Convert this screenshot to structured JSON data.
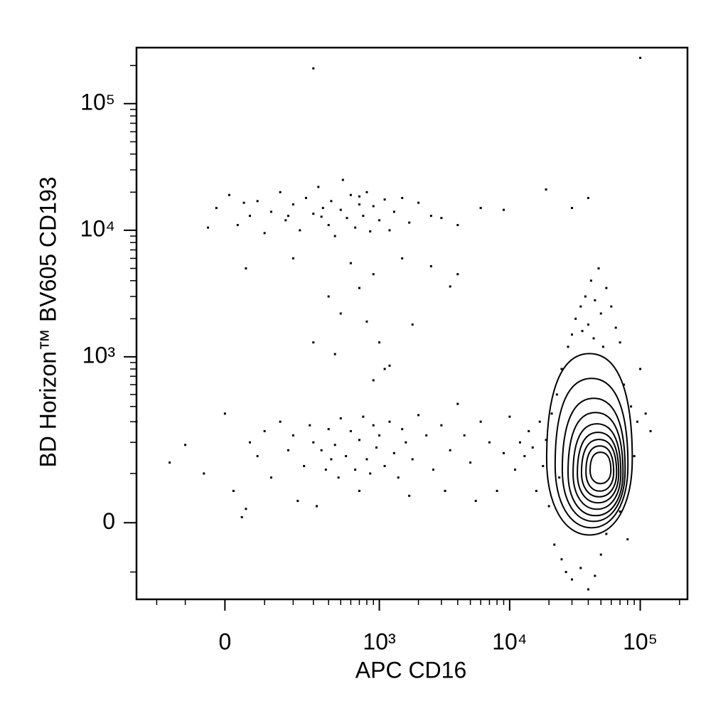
{
  "chart_data": {
    "type": "scatter",
    "xlabel": "APC CD16",
    "ylabel": "BD Horizon™ BV605 CD193",
    "xscale": "biexponential",
    "yscale": "biexponential",
    "xlim": [
      -300,
      230000
    ],
    "ylim": [
      -185,
      277000
    ],
    "xticks": [
      0,
      {
        "value": 1000,
        "label": "10³"
      },
      {
        "value": 10000,
        "label": "10⁴"
      },
      {
        "value": 100000,
        "label": "10⁵"
      }
    ],
    "yticks": [
      0,
      {
        "value": 1000,
        "label": "10³"
      },
      {
        "value": 10000,
        "label": "10⁴"
      },
      {
        "value": 100000,
        "label": "10⁵"
      }
    ],
    "xminorticks": [
      -200,
      -100,
      100,
      200,
      300,
      400,
      500,
      600,
      700,
      800,
      900,
      2000,
      3000,
      4000,
      5000,
      6000,
      7000,
      8000,
      9000,
      20000,
      30000,
      40000,
      50000,
      60000,
      70000,
      80000,
      90000,
      200000
    ],
    "yminorticks": [
      -100,
      100,
      200,
      300,
      400,
      500,
      600,
      700,
      800,
      900,
      2000,
      3000,
      4000,
      5000,
      6000,
      7000,
      8000,
      9000,
      20000,
      30000,
      40000,
      50000,
      60000,
      70000,
      80000,
      90000,
      200000
    ],
    "color": "#000000",
    "x": [
      -20,
      10,
      30,
      60,
      80,
      100,
      120,
      150,
      170,
      200,
      230,
      260,
      300,
      330,
      360,
      400,
      420,
      450,
      500,
      520,
      560,
      600,
      650,
      700,
      750,
      800,
      850,
      900,
      1000,
      1100,
      1200,
      1300,
      1500,
      1700,
      2000,
      2500,
      3000,
      4000,
      6000,
      9000,
      19000,
      40000,
      30000,
      -40,
      45,
      180,
      350,
      700,
      50,
      200,
      400,
      500,
      600,
      700,
      900,
      1500,
      1800,
      2500,
      3500,
      4000,
      800,
      1000,
      1100,
      450,
      300,
      900,
      1200,
      -300,
      -150,
      -100,
      -50,
      0,
      20,
      40,
      60,
      80,
      100,
      120,
      150,
      180,
      200,
      220,
      250,
      280,
      300,
      320,
      350,
      380,
      400,
      420,
      450,
      480,
      500,
      550,
      600,
      650,
      700,
      750,
      800,
      850,
      900,
      950,
      1000,
      1100,
      1200,
      1300,
      1400,
      1500,
      1600,
      1800,
      2000,
      2300,
      2600,
      3000,
      3500,
      4000,
      4500,
      5000,
      6000,
      7000,
      8000,
      9000,
      5500,
      3200,
      1700,
      700,
      50,
      10000,
      12000,
      11000,
      13000,
      14000,
      15000,
      16000,
      17000,
      18000,
      19000,
      20000,
      21000,
      22000,
      24000,
      25000,
      27000,
      30000,
      35000,
      40000,
      45000,
      50000,
      55000,
      23000,
      25000,
      28000,
      30000,
      32000,
      35000,
      38000,
      40000,
      42000,
      45000,
      48000,
      50000,
      55000,
      60000,
      65000,
      70000,
      36000,
      44000,
      52000,
      75000,
      85000,
      95000,
      110000,
      120000,
      100000,
      90000,
      80000,
      70000,
      300,
      100000
    ],
    "values": [
      15000,
      19000,
      11000,
      13000,
      17000,
      9500,
      14000,
      20000,
      12000,
      16000,
      10000,
      18000,
      13500,
      22000,
      15000,
      11000,
      17000,
      9000,
      14500,
      25000,
      12500,
      19000,
      10500,
      16000,
      13000,
      20000,
      9800,
      15500,
      12000,
      17500,
      10000,
      14000,
      18000,
      11500,
      16500,
      13000,
      12500,
      11000,
      15000,
      14500,
      21000,
      18000,
      15000,
      10500,
      16500,
      13000,
      12800,
      18500,
      5000,
      6000,
      3000,
      2200,
      5500,
      3500,
      4500,
      6000,
      1800,
      5200,
      3600,
      4500,
      1900,
      1300,
      800,
      1050,
      1300,
      650,
      850,
      300,
      130,
      190,
      100,
      350,
      60,
      10,
      200,
      150,
      250,
      90,
      300,
      170,
      230,
      40,
      120,
      280,
      200,
      30,
      170,
      110,
      260,
      140,
      190,
      90,
      320,
      150,
      250,
      110,
      210,
      330,
      140,
      100,
      280,
      180,
      230,
      120,
      300,
      160,
      90,
      260,
      200,
      140,
      340,
      230,
      110,
      280,
      170,
      420,
      230,
      130,
      300,
      200,
      60,
      160,
      40,
      60,
      50,
      60,
      25,
      330,
      200,
      110,
      150,
      250,
      180,
      60,
      300,
      120,
      210,
      30,
      350,
      -40,
      90,
      -70,
      -100,
      -120,
      -90,
      -150,
      -110,
      -60,
      -20,
      500,
      800,
      1200,
      1500,
      2000,
      2500,
      3000,
      1800,
      4000,
      2800,
      5000,
      2200,
      3500,
      2500,
      1700,
      1300,
      1600,
      1400,
      1200,
      600,
      400,
      300,
      350,
      250,
      800,
      150,
      -30,
      20,
      190000,
      230000
    ],
    "contours": [
      {
        "x": [
          19200,
          86900
        ],
        "y": [
          -22,
          1060
        ]
      },
      {
        "x": [
          22300,
          80500
        ],
        "y": [
          -9,
          673
        ]
      },
      {
        "x": [
          25300,
          76600
        ],
        "y": [
          2.5,
          466
        ]
      },
      {
        "x": [
          28000,
          73800
        ],
        "y": [
          12.7,
          357
        ]
      },
      {
        "x": [
          30600,
          71000
        ],
        "y": [
          24.4,
          288
        ]
      },
      {
        "x": [
          33000,
          68400
        ],
        "y": [
          36.3,
          244
        ]
      },
      {
        "x": [
          35500,
          65900
        ],
        "y": [
          48,
          212
        ]
      },
      {
        "x": [
          38400,
          62600
        ],
        "y": [
          59.6,
          186
        ]
      },
      {
        "x": [
          41300,
          59600
        ],
        "y": [
          75.8,
          163
        ]
      }
    ]
  }
}
